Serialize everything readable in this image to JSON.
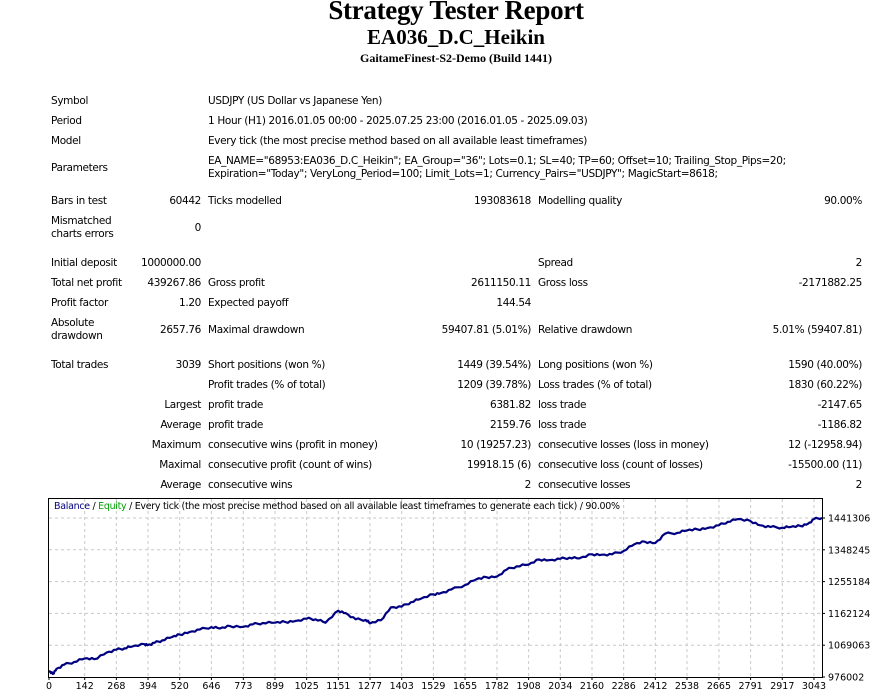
{
  "header": {
    "title": "Strategy Tester Report",
    "ea_name": "EA036_D.C_Heikin",
    "server": "GaitameFinest-S2-Demo (Build 1441)"
  },
  "info": {
    "symbol_label": "Symbol",
    "symbol_value": "USDJPY (US Dollar vs Japanese Yen)",
    "period_label": "Period",
    "period_value": "1 Hour (H1) 2016.01.05 00:00 - 2025.07.25 23:00 (2016.01.05 - 2025.09.03)",
    "model_label": "Model",
    "model_value": "Every tick (the most precise method based on all available least timeframes)",
    "parameters_label": "Parameters",
    "parameters_line1": "EA_NAME=\"68953:EA036_D.C_Heikin\"; EA_Group=\"36\"; Lots=0.1; SL=40; TP=60; Offset=10; Trailing_Stop_Pips=20;",
    "parameters_line2": "Expiration=\"Today\"; VeryLong_Period=100; Limit_Lots=1; Currency_Pairs=\"USDJPY\"; MagicStart=8618;"
  },
  "stats": {
    "bars_in_test_label": "Bars in test",
    "bars_in_test": "60442",
    "ticks_modelled_label": "Ticks modelled",
    "ticks_modelled": "193083618",
    "modelling_quality_label": "Modelling quality",
    "modelling_quality": "90.00%",
    "mismatched_label_1": "Mismatched",
    "mismatched_label_2": "charts errors",
    "mismatched": "0",
    "initial_deposit_label": "Initial deposit",
    "initial_deposit": "1000000.00",
    "spread_label": "Spread",
    "spread": "2",
    "total_net_profit_label": "Total net profit",
    "total_net_profit": "439267.86",
    "gross_profit_label": "Gross profit",
    "gross_profit": "2611150.11",
    "gross_loss_label": "Gross loss",
    "gross_loss": "-2171882.25",
    "profit_factor_label": "Profit factor",
    "profit_factor": "1.20",
    "expected_payoff_label": "Expected payoff",
    "expected_payoff": "144.54",
    "absolute_drawdown_label_1": "Absolute",
    "absolute_drawdown_label_2": "drawdown",
    "absolute_drawdown": "2657.76",
    "maximal_drawdown_label": "Maximal drawdown",
    "maximal_drawdown": "59407.81 (5.01%)",
    "relative_drawdown_label": "Relative drawdown",
    "relative_drawdown": "5.01% (59407.81)",
    "total_trades_label": "Total trades",
    "total_trades": "3039",
    "short_positions_label": "Short positions (won %)",
    "short_positions": "1449 (39.54%)",
    "long_positions_label": "Long positions (won %)",
    "long_positions": "1590 (40.00%)",
    "profit_trades_label": "Profit trades (% of total)",
    "profit_trades": "1209 (39.78%)",
    "loss_trades_label": "Loss trades (% of total)",
    "loss_trades": "1830 (60.22%)",
    "largest_label": "Largest",
    "largest_profit_label": "profit trade",
    "largest_profit": "6381.82",
    "largest_loss_label": "loss trade",
    "largest_loss": "-2147.65",
    "average_label": "Average",
    "average_profit_label": "profit trade",
    "average_profit": "2159.76",
    "average_loss_label": "loss trade",
    "average_loss": "-1186.82",
    "maximum_label": "Maximum",
    "max_consec_wins_label": "consecutive wins (profit in money)",
    "max_consec_wins": "10 (19257.23)",
    "max_consec_losses_label": "consecutive losses (loss in money)",
    "max_consec_losses": "12 (-12958.94)",
    "maximal_label": "Maximal",
    "maximal_consec_profit_label": "consecutive profit (count of wins)",
    "maximal_consec_profit": "19918.15 (6)",
    "maximal_consec_loss_label": "consecutive loss (count of losses)",
    "maximal_consec_loss": "-15500.00 (11)",
    "average2_label": "Average",
    "avg_consec_wins_label": "consecutive wins",
    "avg_consec_wins": "2",
    "avg_consec_losses_label": "consecutive losses",
    "avg_consec_losses": "2"
  },
  "chart_data": {
    "type": "line",
    "title": "Balance / Equity / Every tick (the most precise method based on all available least timeframes to generate each tick) / 90.00%",
    "legend": [
      {
        "name": "Balance",
        "color": "#000080"
      },
      {
        "name": "Equity",
        "color": "#00a000"
      }
    ],
    "legend_rest": " / Every tick (the most precise method based on all available least timeframes to generate each tick) / 90.00%",
    "legend_sep": " / ",
    "xlabel": "",
    "ylabel": "",
    "x_ticks": [
      0,
      142,
      268,
      394,
      520,
      646,
      773,
      899,
      1025,
      1151,
      1277,
      1403,
      1529,
      1655,
      1782,
      1908,
      2034,
      2160,
      2286,
      2412,
      2538,
      2665,
      2791,
      2917,
      3043
    ],
    "y_ticks": [
      976002,
      1069063,
      1162124,
      1255184,
      1348245,
      1441306
    ],
    "xlim": [
      0,
      3075
    ],
    "ylim": [
      976002,
      1470000
    ],
    "grid": true,
    "series": [
      {
        "name": "Balance",
        "color": "#000080",
        "x": [
          0,
          15,
          30,
          60,
          100,
          142,
          180,
          230,
          268,
          300,
          330,
          380,
          394,
          420,
          450,
          490,
          520,
          560,
          600,
          646,
          680,
          720,
          773,
          810,
          850,
          899,
          940,
          980,
          1025,
          1060,
          1100,
          1151,
          1180,
          1220,
          1260,
          1277,
          1320,
          1360,
          1403,
          1440,
          1480,
          1529,
          1560,
          1600,
          1655,
          1700,
          1740,
          1782,
          1820,
          1860,
          1908,
          1950,
          1990,
          2034,
          2070,
          2110,
          2160,
          2200,
          2240,
          2286,
          2330,
          2370,
          2412,
          2450,
          2500,
          2538,
          2580,
          2620,
          2665,
          2700,
          2740,
          2791,
          2830,
          2870,
          2917,
          2950,
          2990,
          3020,
          3043,
          3075
        ],
        "values": [
          993000,
          985000,
          1000000,
          1012000,
          1020000,
          1030000,
          1028000,
          1048000,
          1056000,
          1060000,
          1065000,
          1072000,
          1070000,
          1076000,
          1083000,
          1093000,
          1100000,
          1108000,
          1115000,
          1122000,
          1118000,
          1125000,
          1123000,
          1130000,
          1134000,
          1135000,
          1137000,
          1140000,
          1147000,
          1145000,
          1135000,
          1170000,
          1163000,
          1145000,
          1143000,
          1133000,
          1142000,
          1180000,
          1182000,
          1195000,
          1205000,
          1218000,
          1222000,
          1232000,
          1245000,
          1262000,
          1268000,
          1270000,
          1290000,
          1300000,
          1305000,
          1320000,
          1318000,
          1322000,
          1325000,
          1323000,
          1335000,
          1334000,
          1335000,
          1345000,
          1365000,
          1372000,
          1368000,
          1395000,
          1398000,
          1405000,
          1408000,
          1412000,
          1420000,
          1430000,
          1438000,
          1432000,
          1420000,
          1415000,
          1413000,
          1415000,
          1418000,
          1425000,
          1438000,
          1442000
        ]
      }
    ]
  }
}
